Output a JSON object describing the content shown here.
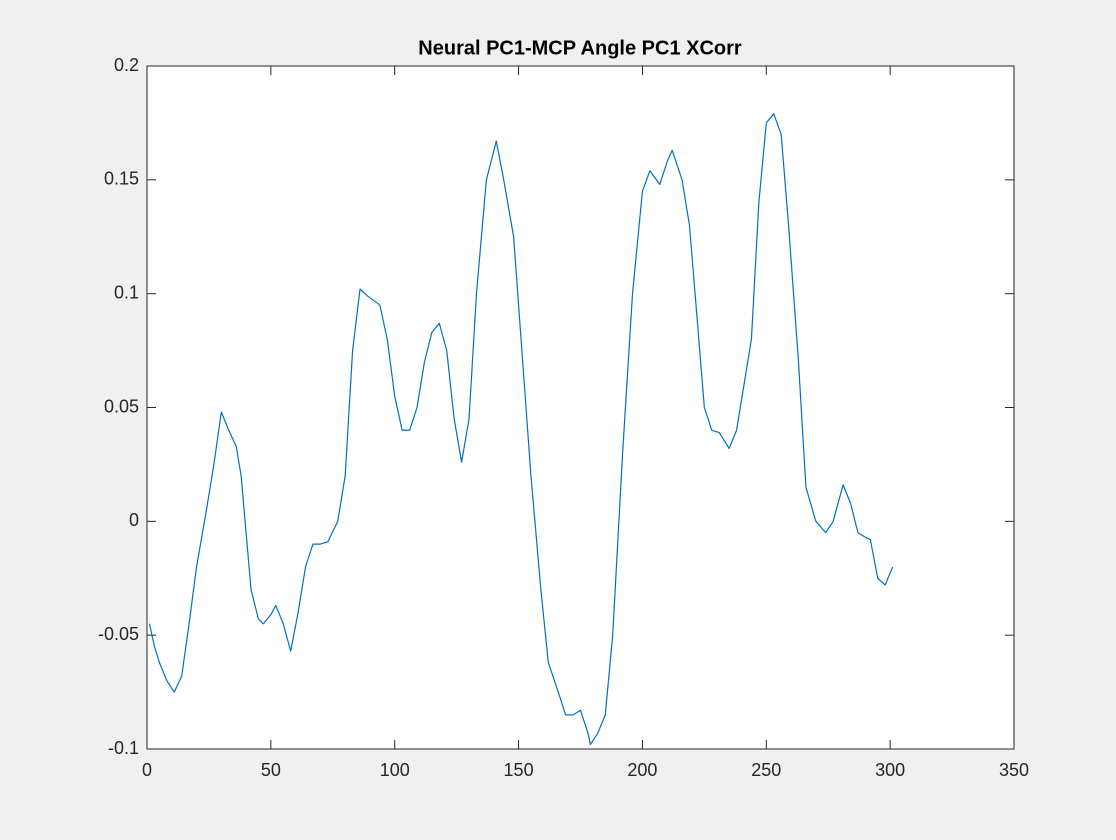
{
  "chart_data": {
    "type": "line",
    "title": "Neural PC1-MCP Angle PC1 XCorr",
    "x": [
      1,
      3,
      5,
      8,
      11,
      14,
      17,
      20,
      24,
      27,
      30,
      33,
      36,
      38,
      40,
      42,
      45,
      47,
      50,
      52,
      55,
      58,
      61,
      64,
      67,
      70,
      73,
      77,
      80,
      83,
      86,
      89,
      94,
      97,
      100,
      103,
      106,
      109,
      112,
      115,
      118,
      121,
      124,
      127,
      130,
      133,
      137,
      141,
      144,
      148,
      151,
      155,
      159,
      162,
      166,
      169,
      172,
      175,
      178,
      179,
      182,
      185,
      188,
      192,
      196,
      200,
      203,
      207,
      210,
      212,
      216,
      219,
      222,
      225,
      228,
      231,
      235,
      238,
      241,
      244,
      247,
      250,
      253,
      256,
      259,
      263,
      266,
      270,
      274,
      277,
      281,
      284,
      287,
      290,
      292,
      295,
      298,
      301
    ],
    "series": [
      {
        "color": "#0072bd",
        "values": [
          -0.045,
          -0.055,
          -0.062,
          -0.07,
          -0.075,
          -0.068,
          -0.045,
          -0.02,
          0.005,
          0.025,
          0.048,
          0.04,
          0.033,
          0.02,
          -0.005,
          -0.03,
          -0.043,
          -0.045,
          -0.041,
          -0.037,
          -0.045,
          -0.057,
          -0.04,
          -0.02,
          -0.01,
          -0.01,
          -0.009,
          0,
          0.02,
          0.075,
          0.102,
          0.099,
          0.095,
          0.08,
          0.055,
          0.04,
          0.04,
          0.05,
          0.07,
          0.083,
          0.087,
          0.075,
          0.045,
          0.026,
          0.045,
          0.1,
          0.15,
          0.167,
          0.15,
          0.125,
          0.08,
          0.02,
          -0.03,
          -0.062,
          -0.075,
          -0.085,
          -0.085,
          -0.083,
          -0.093,
          -0.098,
          -0.093,
          -0.085,
          -0.05,
          0.03,
          0.1,
          0.145,
          0.154,
          0.148,
          0.158,
          0.163,
          0.15,
          0.13,
          0.09,
          0.05,
          0.04,
          0.039,
          0.032,
          0.04,
          0.06,
          0.08,
          0.14,
          0.175,
          0.179,
          0.17,
          0.13,
          0.07,
          0.015,
          0,
          -0.005,
          0,
          0.016,
          0.008,
          -0.005,
          -0.007,
          -0.008,
          -0.025,
          -0.028,
          -0.02
        ]
      }
    ],
    "xlim": [
      0,
      350
    ],
    "xticks": [
      0,
      50,
      100,
      150,
      200,
      250,
      300,
      350
    ],
    "ylim": [
      -0.1,
      0.2
    ],
    "yticks": [
      -0.1,
      -0.05,
      0,
      0.05,
      0.1,
      0.15,
      0.2
    ]
  }
}
